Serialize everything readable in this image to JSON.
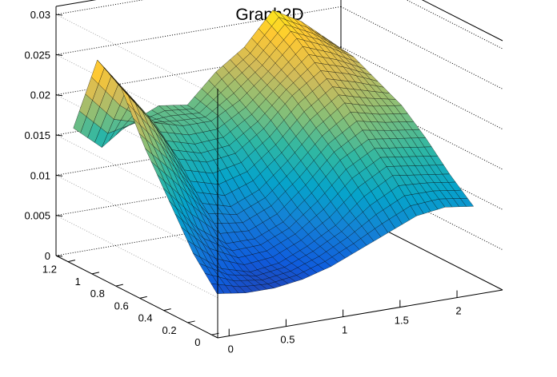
{
  "chart_data": {
    "type": "surface",
    "title": "Graph2D",
    "xlabel": "",
    "ylabel": "",
    "zlabel": "",
    "xlim": [
      -0.1,
      2.4
    ],
    "ylim": [
      -0.05,
      1.3
    ],
    "zlim": [
      0,
      0.031
    ],
    "x_ticks": [
      0,
      0.5,
      1,
      1.5,
      2
    ],
    "x_tick_labels": [
      "0",
      "0.5",
      "1",
      "1.5",
      "2"
    ],
    "y_ticks": [
      0,
      0.2,
      0.4,
      0.6,
      0.8,
      1,
      1.2
    ],
    "y_tick_labels": [
      "0",
      "0.2",
      "0.4",
      "0.6",
      "0.8",
      "1",
      "1.2"
    ],
    "z_ticks": [
      0,
      0.005,
      0.01,
      0.015,
      0.02,
      0.025,
      0.03
    ],
    "z_tick_labels": [
      "0",
      "0.005",
      "0.01",
      "0.015",
      "0.02",
      "0.025",
      "0.03"
    ],
    "grid": true,
    "palette": [
      "#352a87",
      "#0f5cdd",
      "#1481d6",
      "#06a4ca",
      "#2eb7a4",
      "#87bf77",
      "#d1bb59",
      "#fec832",
      "#f9fb0e"
    ],
    "surface_x": [
      0,
      0.25,
      0.5,
      0.75,
      1,
      1.25,
      1.5,
      1.75,
      2,
      2.25
    ],
    "surface_y": [
      1.25,
      1.05,
      0.85,
      0.65,
      0.45,
      0.25,
      0.05
    ],
    "surface_z": [
      [
        0.016,
        0.013,
        0.0155,
        0.017,
        0.0165,
        0.02,
        0.0225,
        0.0265,
        0.0245,
        0.0215
      ],
      [
        0.026,
        0.0215,
        0.017,
        0.016,
        0.016,
        0.018,
        0.021,
        0.0245,
        0.023,
        0.021
      ],
      [
        0.024,
        0.0195,
        0.014,
        0.013,
        0.0135,
        0.016,
        0.0195,
        0.022,
        0.021,
        0.0195
      ],
      [
        0.018,
        0.0145,
        0.01,
        0.009,
        0.0105,
        0.0135,
        0.017,
        0.0195,
        0.0185,
        0.018
      ],
      [
        0.013,
        0.009,
        0.0065,
        0.0065,
        0.008,
        0.011,
        0.0145,
        0.0165,
        0.016,
        0.0155
      ],
      [
        0.008,
        0.0055,
        0.0045,
        0.005,
        0.0065,
        0.0085,
        0.0115,
        0.0135,
        0.013,
        0.0125
      ],
      [
        0.0045,
        0.004,
        0.004,
        0.0045,
        0.0055,
        0.007,
        0.0085,
        0.01,
        0.0105,
        0.01
      ]
    ]
  }
}
